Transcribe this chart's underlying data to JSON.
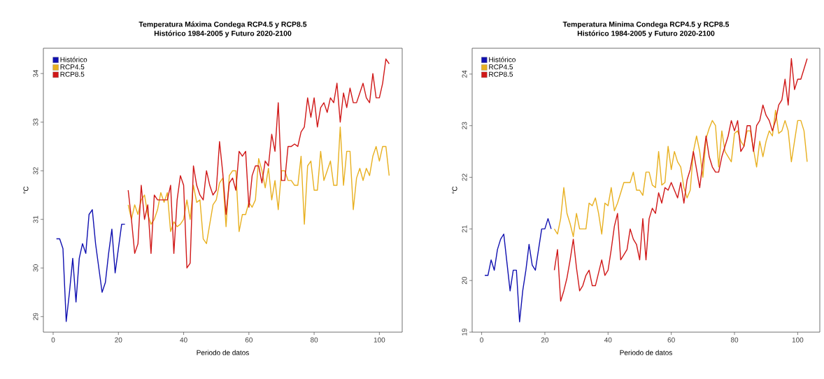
{
  "chart_data": [
    {
      "type": "line",
      "title": "Temperatura Máxima Condega RCP4.5 y RCP8.5",
      "subtitle": "Histórico 1984-2005 y Futuro 2020-2100",
      "xlabel": "Periodo de datos",
      "ylabel": "°C",
      "xlim": [
        -3,
        107
      ],
      "ylim": [
        28.68,
        34.52
      ],
      "xticks": [
        0,
        20,
        40,
        60,
        80,
        100
      ],
      "yticks": [
        29,
        30,
        31,
        32,
        33,
        34
      ],
      "legend": "top left",
      "grid": false,
      "series": [
        {
          "name": "Histórico",
          "color": "#1010b0",
          "x": [
            1,
            2,
            3,
            4,
            5,
            6,
            7,
            8,
            9,
            10,
            11,
            12,
            13,
            14,
            15,
            16,
            17,
            18,
            19,
            20,
            21,
            22
          ],
          "values": [
            30.6,
            30.6,
            30.4,
            28.9,
            29.5,
            30.2,
            29.3,
            30.2,
            30.5,
            30.3,
            31.1,
            31.2,
            30.5,
            30.0,
            29.5,
            29.7,
            30.3,
            30.8,
            29.9,
            30.4,
            30.9,
            30.9
          ]
        },
        {
          "name": "RCP4.5",
          "color": "#e8b020",
          "x": [
            23,
            24,
            25,
            26,
            27,
            28,
            29,
            30,
            31,
            32,
            33,
            34,
            35,
            36,
            37,
            38,
            39,
            40,
            41,
            42,
            43,
            44,
            45,
            46,
            47,
            48,
            49,
            50,
            51,
            52,
            53,
            54,
            55,
            56,
            57,
            58,
            59,
            60,
            61,
            62,
            63,
            64,
            65,
            66,
            67,
            68,
            69,
            70,
            71,
            72,
            73,
            74,
            75,
            76,
            77,
            78,
            79,
            80,
            81,
            82,
            83,
            84,
            85,
            86,
            87,
            88,
            89,
            90,
            91,
            92,
            93,
            94,
            95,
            96,
            97,
            98,
            99,
            100,
            101,
            102,
            103
          ],
          "values": [
            31.3,
            31.0,
            31.3,
            31.1,
            31.4,
            31.5,
            31.1,
            30.9,
            31.0,
            31.2,
            31.55,
            31.35,
            31.55,
            30.75,
            30.95,
            30.85,
            30.9,
            31.0,
            31.4,
            31.0,
            31.7,
            31.35,
            31.4,
            30.6,
            30.5,
            30.9,
            31.3,
            31.4,
            31.75,
            31.85,
            30.85,
            31.9,
            32.0,
            32.0,
            30.75,
            31.1,
            31.1,
            31.35,
            31.25,
            31.4,
            32.25,
            32.0,
            31.65,
            32.05,
            31.4,
            31.8,
            31.2,
            32.0,
            32.0,
            31.8,
            31.8,
            31.7,
            31.7,
            32.3,
            30.9,
            32.1,
            32.2,
            31.6,
            31.6,
            32.4,
            31.8,
            32.0,
            32.2,
            31.7,
            31.7,
            32.9,
            31.7,
            32.4,
            32.4,
            31.2,
            31.85,
            32.05,
            31.8,
            32.05,
            31.9,
            32.3,
            32.5,
            32.2,
            32.5,
            32.5,
            31.9
          ]
        },
        {
          "name": "RCP8.5",
          "color": "#d01818",
          "x": [
            23,
            24,
            25,
            26,
            27,
            28,
            29,
            30,
            31,
            32,
            33,
            34,
            35,
            36,
            37,
            38,
            39,
            40,
            41,
            42,
            43,
            44,
            45,
            46,
            47,
            48,
            49,
            50,
            51,
            52,
            53,
            54,
            55,
            56,
            57,
            58,
            59,
            60,
            61,
            62,
            63,
            64,
            65,
            66,
            67,
            68,
            69,
            70,
            71,
            72,
            73,
            74,
            75,
            76,
            77,
            78,
            79,
            80,
            81,
            82,
            83,
            84,
            85,
            86,
            87,
            88,
            89,
            90,
            91,
            92,
            93,
            94,
            95,
            96,
            97,
            98,
            99,
            100,
            101,
            102,
            103
          ],
          "values": [
            31.6,
            31.0,
            30.3,
            30.5,
            31.7,
            31.0,
            31.3,
            30.3,
            31.5,
            31.4,
            31.4,
            31.4,
            31.4,
            31.7,
            30.3,
            31.4,
            31.9,
            31.7,
            30.0,
            30.1,
            32.1,
            31.7,
            31.5,
            31.4,
            32.0,
            31.7,
            31.5,
            31.6,
            32.6,
            31.95,
            31.1,
            31.75,
            31.85,
            31.6,
            32.4,
            32.3,
            32.4,
            31.25,
            31.9,
            32.1,
            32.1,
            31.75,
            32.2,
            32.1,
            32.75,
            32.4,
            33.4,
            31.8,
            31.8,
            32.5,
            32.5,
            32.55,
            32.5,
            32.8,
            32.9,
            33.5,
            33.1,
            33.5,
            32.9,
            33.3,
            33.4,
            33.2,
            33.5,
            33.4,
            33.8,
            33.0,
            33.6,
            33.3,
            33.7,
            33.4,
            33.4,
            33.6,
            33.8,
            33.5,
            33.4,
            34.0,
            33.5,
            33.5,
            33.8,
            34.3,
            34.2
          ]
        }
      ]
    },
    {
      "type": "line",
      "title": "Temperatura Minima Condega RCP4.5 y RCP8.5",
      "subtitle": "Histórico 1984-2005 y Futuro 2020-2100",
      "xlabel": "Periodo de datos",
      "ylabel": "°C",
      "xlim": [
        -3,
        107
      ],
      "ylim": [
        19.0,
        24.5
      ],
      "xticks": [
        0,
        20,
        40,
        60,
        80,
        100
      ],
      "yticks": [
        19,
        20,
        21,
        22,
        23,
        24
      ],
      "legend": "top left",
      "grid": false,
      "series": [
        {
          "name": "Histórico",
          "color": "#1010b0",
          "x": [
            1,
            2,
            3,
            4,
            5,
            6,
            7,
            8,
            9,
            10,
            11,
            12,
            13,
            14,
            15,
            16,
            17,
            18,
            19,
            20,
            21,
            22
          ],
          "values": [
            20.1,
            20.1,
            20.4,
            20.2,
            20.6,
            20.8,
            20.9,
            20.35,
            19.8,
            20.2,
            20.2,
            19.2,
            19.8,
            20.2,
            20.7,
            20.3,
            20.2,
            20.6,
            21.0,
            21.0,
            21.2,
            21.0
          ]
        },
        {
          "name": "RCP4.5",
          "color": "#e8b020",
          "x": [
            23,
            24,
            25,
            26,
            27,
            28,
            29,
            30,
            31,
            32,
            33,
            34,
            35,
            36,
            37,
            38,
            39,
            40,
            41,
            42,
            43,
            44,
            45,
            46,
            47,
            48,
            49,
            50,
            51,
            52,
            53,
            54,
            55,
            56,
            57,
            58,
            59,
            60,
            61,
            62,
            63,
            64,
            65,
            66,
            67,
            68,
            69,
            70,
            71,
            72,
            73,
            74,
            75,
            76,
            77,
            78,
            79,
            80,
            81,
            82,
            83,
            84,
            85,
            86,
            87,
            88,
            89,
            90,
            91,
            92,
            93,
            94,
            95,
            96,
            97,
            98,
            99,
            100,
            101,
            102,
            103
          ],
          "values": [
            21.0,
            20.9,
            21.2,
            21.8,
            21.3,
            21.1,
            20.85,
            21.3,
            21.0,
            21.0,
            21.0,
            21.5,
            21.45,
            21.6,
            21.3,
            20.9,
            21.5,
            21.45,
            21.8,
            21.35,
            21.5,
            21.7,
            21.9,
            21.9,
            21.9,
            22.1,
            21.75,
            21.75,
            21.65,
            22.1,
            22.1,
            21.85,
            21.8,
            22.5,
            21.85,
            21.9,
            22.6,
            22.15,
            22.5,
            22.3,
            22.2,
            21.8,
            21.6,
            21.75,
            22.5,
            22.8,
            22.5,
            22.0,
            22.75,
            22.95,
            23.1,
            23.0,
            22.2,
            22.9,
            22.5,
            22.4,
            22.3,
            22.85,
            22.9,
            22.7,
            22.6,
            22.9,
            22.9,
            22.55,
            22.2,
            22.7,
            22.4,
            22.7,
            22.9,
            22.8,
            23.3,
            22.85,
            22.9,
            23.1,
            22.9,
            22.3,
            22.7,
            23.1,
            23.1,
            22.9,
            22.3
          ]
        },
        {
          "name": "RCP8.5",
          "color": "#d01818",
          "x": [
            23,
            24,
            25,
            26,
            27,
            28,
            29,
            30,
            31,
            32,
            33,
            34,
            35,
            36,
            37,
            38,
            39,
            40,
            41,
            42,
            43,
            44,
            45,
            46,
            47,
            48,
            49,
            50,
            51,
            52,
            53,
            54,
            55,
            56,
            57,
            58,
            59,
            60,
            61,
            62,
            63,
            64,
            65,
            66,
            67,
            68,
            69,
            70,
            71,
            72,
            73,
            74,
            75,
            76,
            77,
            78,
            79,
            80,
            81,
            82,
            83,
            84,
            85,
            86,
            87,
            88,
            89,
            90,
            91,
            92,
            93,
            94,
            95,
            96,
            97,
            98,
            99,
            100,
            101,
            102,
            103
          ],
          "values": [
            20.2,
            20.6,
            19.6,
            19.8,
            20.05,
            20.4,
            20.8,
            20.25,
            19.8,
            19.9,
            20.1,
            20.2,
            19.9,
            19.9,
            20.15,
            20.4,
            20.1,
            20.2,
            20.6,
            21.05,
            21.3,
            20.4,
            20.5,
            20.6,
            21.0,
            20.8,
            20.7,
            20.4,
            21.2,
            20.4,
            21.2,
            21.4,
            21.3,
            21.7,
            21.5,
            21.8,
            21.75,
            21.9,
            21.75,
            21.6,
            21.9,
            21.5,
            21.95,
            22.15,
            22.5,
            22.15,
            21.8,
            22.3,
            22.8,
            22.4,
            22.2,
            22.1,
            22.1,
            22.4,
            22.6,
            22.8,
            23.1,
            22.9,
            23.1,
            22.5,
            22.6,
            23.0,
            23.0,
            22.5,
            23.0,
            23.1,
            23.4,
            23.2,
            23.1,
            22.9,
            23.1,
            23.4,
            23.5,
            23.9,
            23.4,
            24.3,
            23.7,
            23.9,
            23.9,
            24.1,
            24.3
          ]
        }
      ]
    }
  ]
}
